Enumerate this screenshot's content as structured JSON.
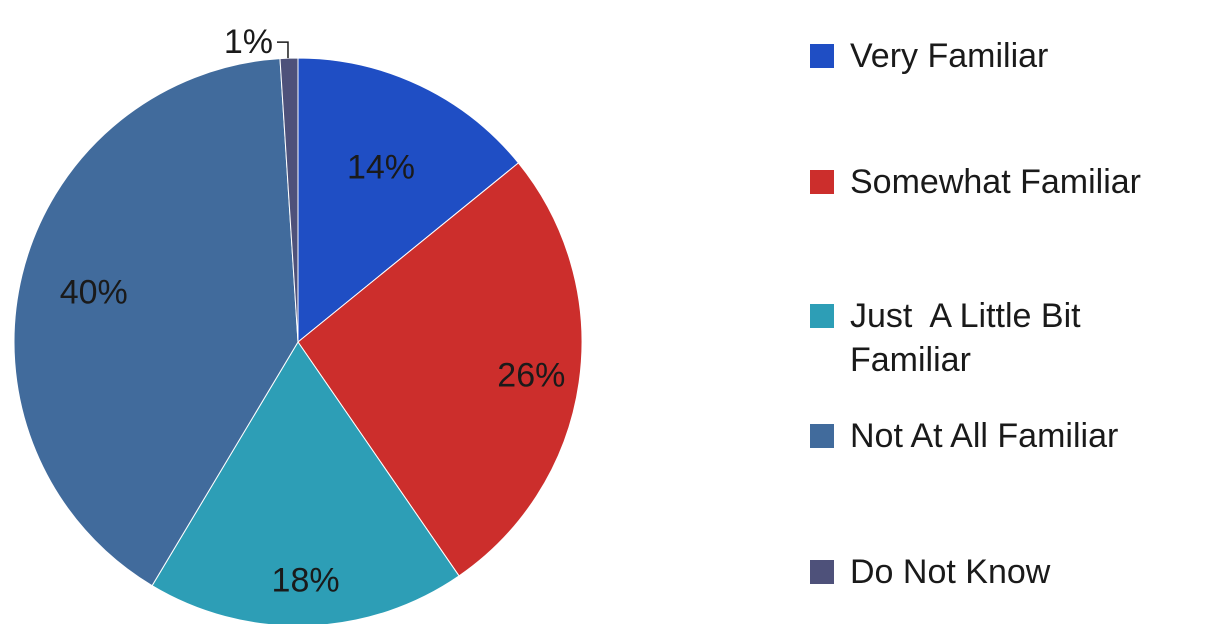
{
  "chart_data": {
    "type": "pie",
    "title": "",
    "categories": [
      "Very Familiar",
      "Somewhat Familiar",
      "Just  A Little Bit Familiar",
      "Not At All Familiar",
      "Do Not Know"
    ],
    "values": [
      14,
      26,
      18,
      40,
      1
    ],
    "value_labels": [
      "14%",
      "26%",
      "18%",
      "40%",
      "1%"
    ],
    "legend_lines": [
      [
        "Very Familiar"
      ],
      [
        "Somewhat Familiar"
      ],
      [
        "Just  A Little Bit",
        "Familiar"
      ],
      [
        "Not At All Familiar"
      ],
      [
        "Do Not Know"
      ]
    ],
    "colors": [
      "#1f4ec4",
      "#cc2e2c",
      "#2d9eb6",
      "#416b9c",
      "#4e517a"
    ],
    "legend_position": "right",
    "start_angle_deg": 0,
    "direction": "clockwise"
  }
}
